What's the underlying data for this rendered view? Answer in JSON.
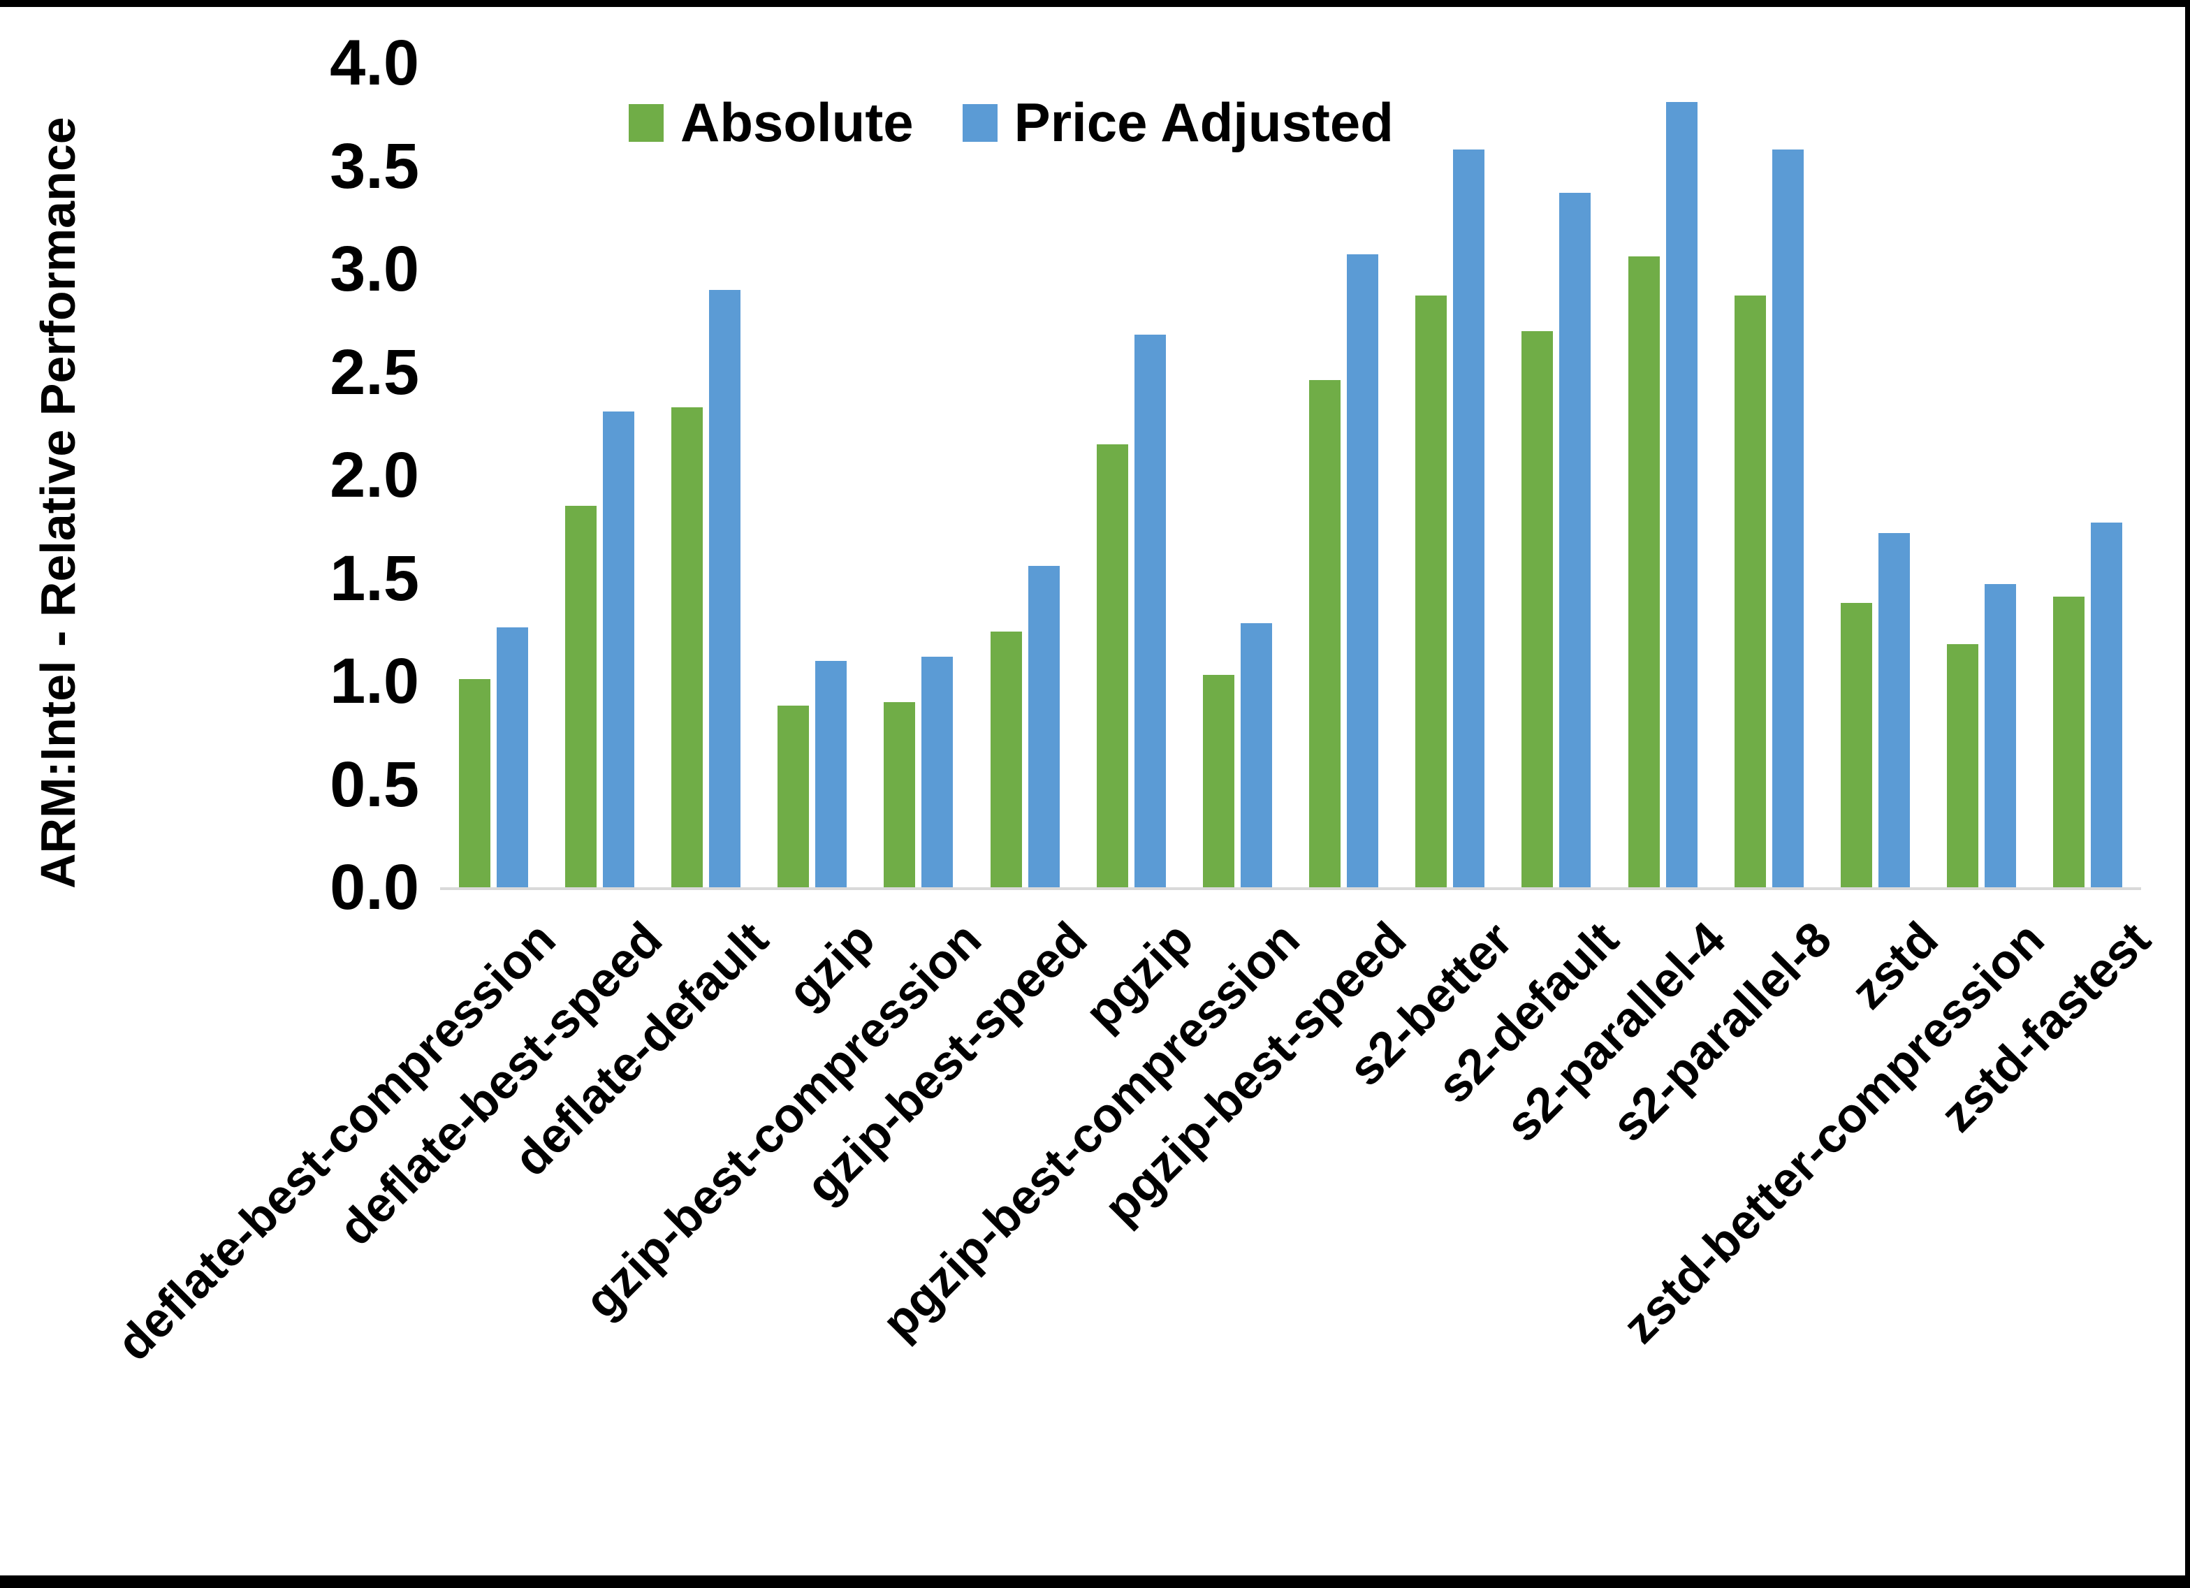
{
  "chart_data": {
    "type": "bar",
    "title": "",
    "xlabel": "",
    "ylabel": "ARM:Intel - Relative Performance",
    "ylim": [
      0.0,
      4.0
    ],
    "ytick_step": 0.5,
    "yticks": [
      "4.0",
      "3.5",
      "3.0",
      "2.5",
      "2.0",
      "1.5",
      "1.0",
      "0.5",
      "0.0"
    ],
    "grid": false,
    "legend_position": "top-center",
    "background": "#ffffff",
    "axis_line_color": "#d9d9d9",
    "categories": [
      "deflate-best-compression",
      "deflate-best-speed",
      "deflate-default",
      "gzip",
      "gzip-best-compression",
      "gzip-best-speed",
      "pgzip",
      "pgzip-best-compression",
      "pgzip-best-speed",
      "s2-better",
      "s2-default",
      "s2-parallel-4",
      "s2-parallel-8",
      "zstd",
      "zstd-better-compression",
      "zstd-fastest"
    ],
    "series": [
      {
        "name": "Absolute",
        "color": "#70AD47",
        "values": [
          1.01,
          1.85,
          2.33,
          0.88,
          0.9,
          1.24,
          2.15,
          1.03,
          2.46,
          2.87,
          2.7,
          3.06,
          2.87,
          1.38,
          1.18,
          1.41
        ]
      },
      {
        "name": "Price Adjusted",
        "color": "#5B9BD5",
        "values": [
          1.26,
          2.31,
          2.9,
          1.1,
          1.12,
          1.56,
          2.68,
          1.28,
          3.07,
          3.58,
          3.37,
          3.81,
          3.58,
          1.72,
          1.47,
          1.77
        ]
      }
    ]
  },
  "legend": {
    "items": [
      {
        "label": "Absolute",
        "color": "#70AD47"
      },
      {
        "label": "Price Adjusted",
        "color": "#5B9BD5"
      }
    ]
  },
  "frame_color": "#000000"
}
